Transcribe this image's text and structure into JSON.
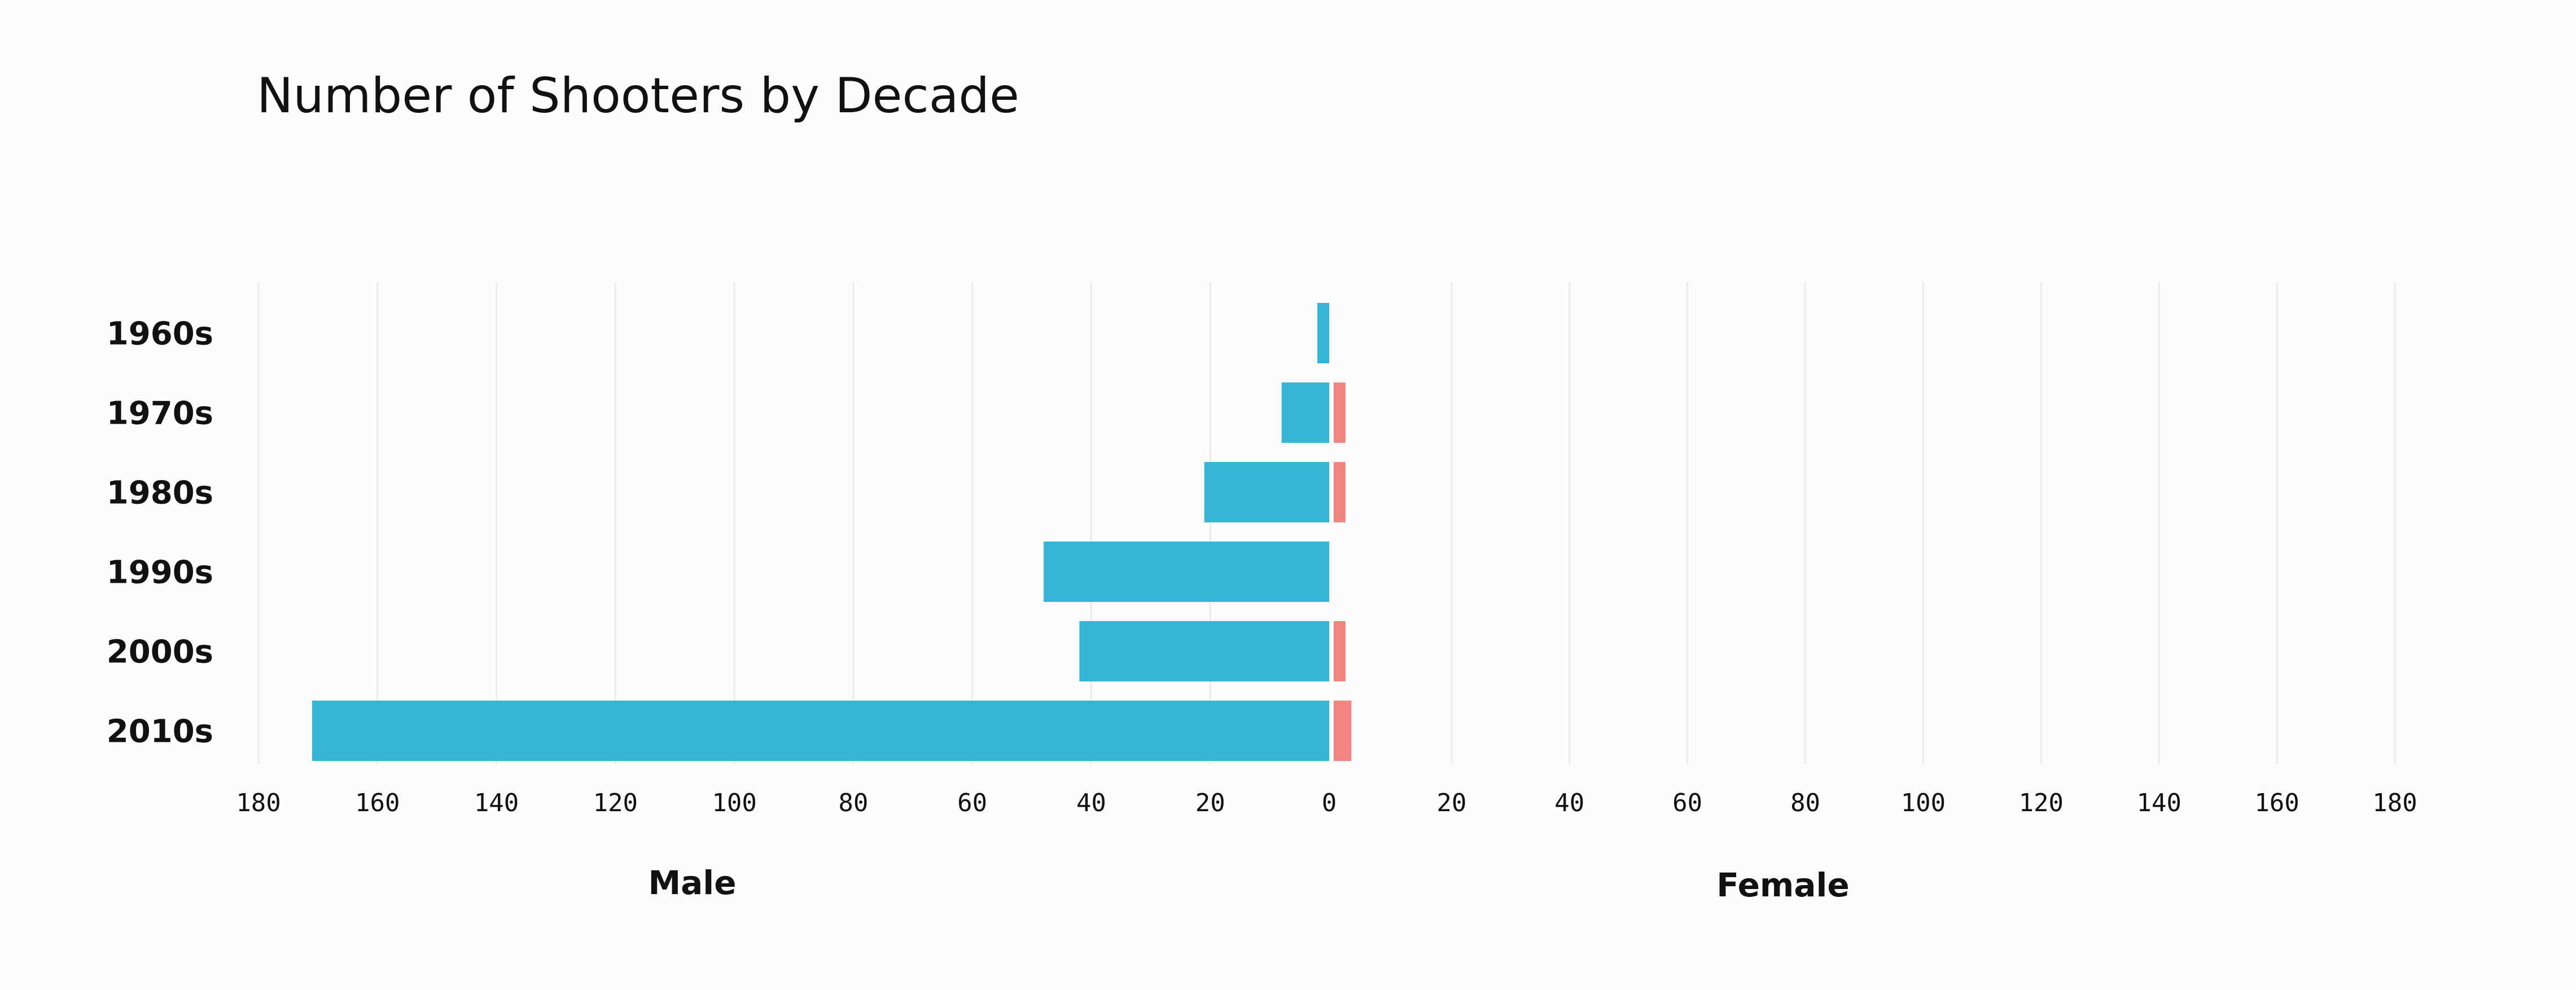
{
  "chart_data": {
    "type": "bar",
    "orientation": "horizontal-butterfly",
    "title": "Number of Shooters by Decade",
    "categories": [
      "1960s",
      "1970s",
      "1980s",
      "1990s",
      "2000s",
      "2010s"
    ],
    "series": [
      {
        "name": "Male",
        "values": [
          2,
          8,
          21,
          48,
          42,
          171
        ],
        "color": "#36b5d6"
      },
      {
        "name": "Female",
        "values": [
          0,
          2,
          2,
          0,
          2,
          3
        ],
        "color": "#f28582"
      }
    ],
    "axis_labels": [
      "Male",
      "Female"
    ],
    "xlim": [
      0,
      180
    ],
    "ticks": [
      180,
      160,
      140,
      120,
      100,
      80,
      60,
      40,
      20,
      0
    ],
    "female_ticks": [
      20,
      40,
      60,
      80,
      100,
      120,
      140,
      160,
      180
    ],
    "grid": true
  }
}
